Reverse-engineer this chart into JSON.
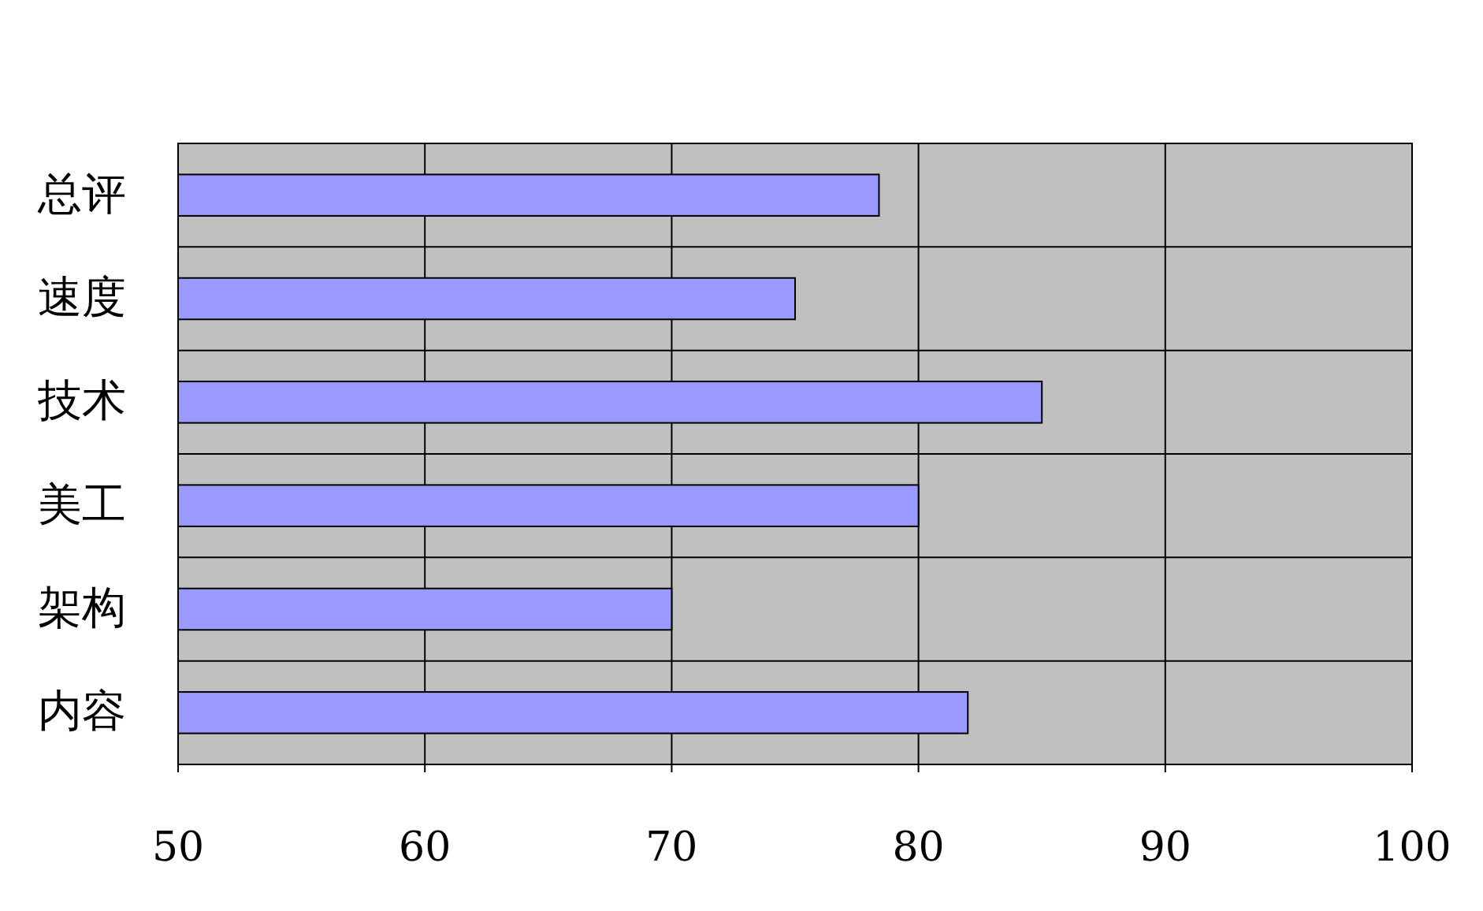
{
  "chart_data": {
    "type": "bar",
    "orientation": "horizontal",
    "categories": [
      "总评",
      "速度",
      "技术",
      "美工",
      "架构",
      "内容"
    ],
    "values": [
      78.4,
      75,
      85,
      80,
      70,
      82
    ],
    "color": "#9999ff",
    "xlim": [
      50,
      100
    ],
    "xticks": [
      50,
      60,
      70,
      80,
      90,
      100
    ],
    "grid": true
  }
}
